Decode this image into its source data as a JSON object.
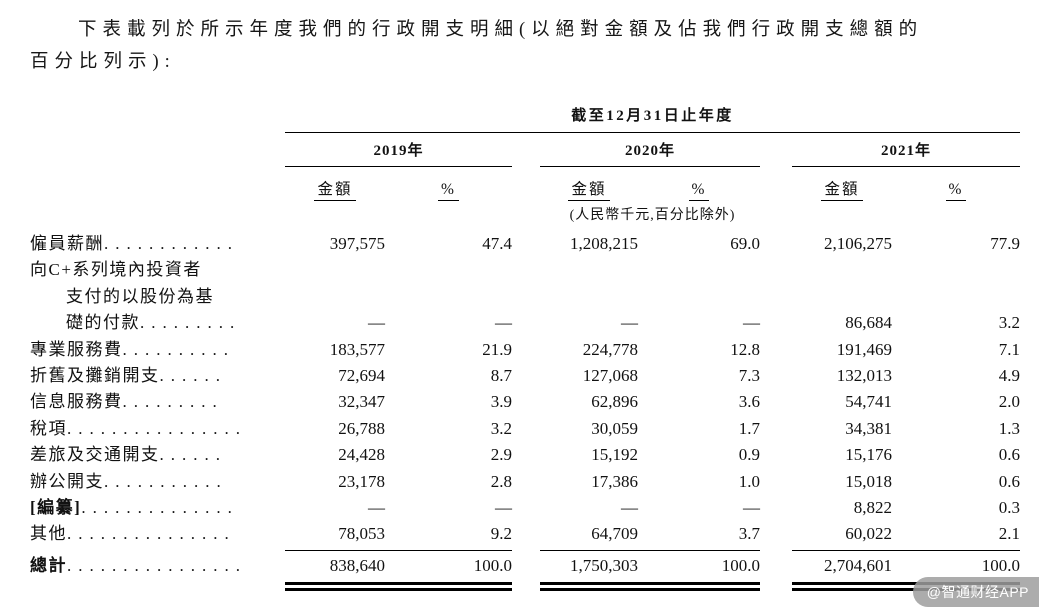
{
  "intro": {
    "line1": "下表載列於所示年度我們的行政開支明細(以絕對金額及佔我們行政開支總額的",
    "line2": "百分比列示):"
  },
  "table": {
    "period_header": "截至12月31日止年度",
    "years": [
      "2019年",
      "2020年",
      "2021年"
    ],
    "amount_label": "金額",
    "percent_label": "%",
    "unit_note": "(人民幣千元,百分比除外)",
    "rows": [
      {
        "label_lines": [
          "僱員薪酬"
        ],
        "dots": "............",
        "values": [
          "397,575",
          "47.4",
          "1,208,215",
          "69.0",
          "2,106,275",
          "77.9"
        ]
      },
      {
        "label_lines": [
          "向C+系列境內投資者",
          "支付的以股份為基",
          "礎的付款"
        ],
        "dots": ".........",
        "values": [
          "—",
          "—",
          "—",
          "—",
          "86,684",
          "3.2"
        ]
      },
      {
        "label_lines": [
          "專業服務費"
        ],
        "dots": "..........",
        "values": [
          "183,577",
          "21.9",
          "224,778",
          "12.8",
          "191,469",
          "7.1"
        ]
      },
      {
        "label_lines": [
          "折舊及攤銷開支"
        ],
        "dots": "......",
        "values": [
          "72,694",
          "8.7",
          "127,068",
          "7.3",
          "132,013",
          "4.9"
        ]
      },
      {
        "label_lines": [
          "信息服務費"
        ],
        "dots": ".........",
        "values": [
          "32,347",
          "3.9",
          "62,896",
          "3.6",
          "54,741",
          "2.0"
        ]
      },
      {
        "label_lines": [
          "稅項"
        ],
        "dots": "................",
        "values": [
          "26,788",
          "3.2",
          "30,059",
          "1.7",
          "34,381",
          "1.3"
        ]
      },
      {
        "label_lines": [
          "差旅及交通開支"
        ],
        "dots": "......",
        "values": [
          "24,428",
          "2.9",
          "15,192",
          "0.9",
          "15,176",
          "0.6"
        ]
      },
      {
        "label_lines": [
          "辦公開支"
        ],
        "dots": "...........",
        "values": [
          "23,178",
          "2.8",
          "17,386",
          "1.0",
          "15,018",
          "0.6"
        ]
      },
      {
        "label_lines": [
          "[編纂]"
        ],
        "bold": true,
        "dots": "..............",
        "values": [
          "—",
          "—",
          "—",
          "—",
          "8,822",
          "0.3"
        ]
      },
      {
        "label_lines": [
          "其他"
        ],
        "dots": "...............",
        "values": [
          "78,053",
          "9.2",
          "64,709",
          "3.7",
          "60,022",
          "2.1"
        ]
      }
    ],
    "total_row": {
      "label": "總計",
      "dots": "................",
      "values": [
        "838,640",
        "100.0",
        "1,750,303",
        "100.0",
        "2,704,601",
        "100.0"
      ]
    }
  },
  "watermark": "@智通财经APP"
}
